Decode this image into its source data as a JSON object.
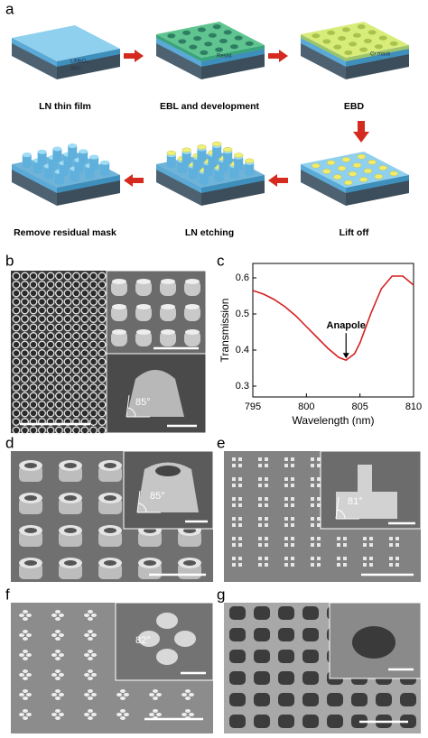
{
  "panel_labels": [
    "a",
    "b",
    "c",
    "d",
    "e",
    "f",
    "g"
  ],
  "process_steps": [
    "LN thin film",
    "EBL and  development",
    "EBD",
    "Lift off",
    "LN etching",
    "Remove residual mask"
  ],
  "layer_labels": [
    "LiNbO₃",
    "SiO₂",
    "Resist",
    "Cr mask"
  ],
  "angle_labels": [
    "85°",
    "85°",
    "81°",
    "82°"
  ],
  "chart_data": {
    "type": "line",
    "x": [
      795,
      796,
      797,
      798,
      799,
      800,
      801,
      802,
      803,
      803.7,
      804.5,
      805,
      806,
      807,
      808,
      809,
      810
    ],
    "values": [
      0.565,
      0.555,
      0.54,
      0.52,
      0.495,
      0.465,
      0.435,
      0.405,
      0.38,
      0.372,
      0.39,
      0.42,
      0.5,
      0.57,
      0.605,
      0.605,
      0.58
    ],
    "color": "#d62020",
    "xlabel": "Wavelength (nm)",
    "ylabel": "Transmission",
    "xlim": [
      795,
      810
    ],
    "xticks": [
      795,
      800,
      805,
      810
    ],
    "ylim": [
      0.27,
      0.64
    ],
    "yticks": [
      0.3,
      0.4,
      0.5,
      0.6
    ],
    "annotations": [
      {
        "text": "Anapole",
        "x": 803.7,
        "y": 0.372
      }
    ]
  }
}
